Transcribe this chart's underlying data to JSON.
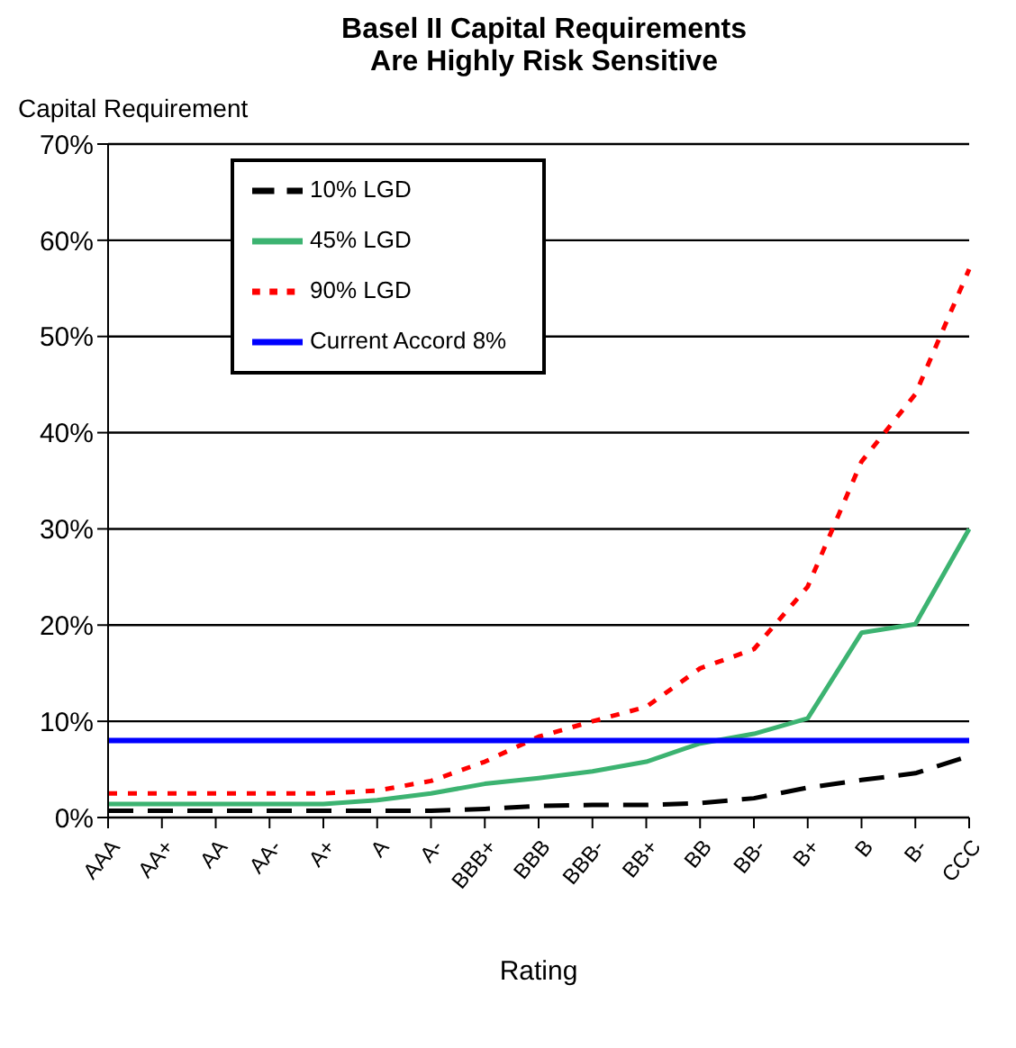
{
  "chart_data": {
    "type": "line",
    "title": "Basel II Capital Requirements\nAre Highly Risk Sensitive",
    "ylabel": "Capital Requirement",
    "xlabel": "Rating",
    "categories": [
      "AAA",
      "AA+",
      "AA",
      "AA-",
      "A+",
      "A",
      "A-",
      "BBB+",
      "BBB",
      "BBB-",
      "BB+",
      "BB",
      "BB-",
      "B+",
      "B",
      "B-",
      "CCC"
    ],
    "series": [
      {
        "name": "10% LGD",
        "color": "#000000",
        "line_style": "dashed",
        "values": [
          0.7,
          0.7,
          0.7,
          0.7,
          0.7,
          0.7,
          0.7,
          0.9,
          1.2,
          1.3,
          1.3,
          1.5,
          2,
          3.1,
          3.9,
          4.6,
          6.4
        ]
      },
      {
        "name": "45% LGD",
        "color": "#3cb371",
        "line_style": "solid",
        "values": [
          1.4,
          1.4,
          1.4,
          1.4,
          1.4,
          1.8,
          2.5,
          3.5,
          4.1,
          4.8,
          5.8,
          7.7,
          8.7,
          10.3,
          19.2,
          20.1,
          30
        ]
      },
      {
        "name": "90% LGD",
        "color": "#ff0000",
        "line_style": "dotted",
        "values": [
          2.5,
          2.5,
          2.5,
          2.5,
          2.5,
          2.8,
          3.8,
          5.8,
          8.4,
          10,
          11.5,
          15.5,
          17.5,
          24,
          37,
          44,
          57
        ]
      },
      {
        "name": "Current Accord 8%",
        "color": "#0000ff",
        "line_style": "solid",
        "values": [
          8,
          8,
          8,
          8,
          8,
          8,
          8,
          8,
          8,
          8,
          8,
          8,
          8,
          8,
          8,
          8,
          8
        ]
      }
    ],
    "ylim": [
      0,
      70
    ],
    "yticks": [
      {
        "value": 0,
        "label": "0%"
      },
      {
        "value": 10,
        "label": "10%"
      },
      {
        "value": 20,
        "label": "20%"
      },
      {
        "value": 30,
        "label": "30%"
      },
      {
        "value": 40,
        "label": "40%"
      },
      {
        "value": 50,
        "label": "50%"
      },
      {
        "value": 60,
        "label": "60%"
      },
      {
        "value": 70,
        "label": "70%"
      }
    ],
    "grid": "y",
    "legend": "top left",
    "marker": "none"
  }
}
